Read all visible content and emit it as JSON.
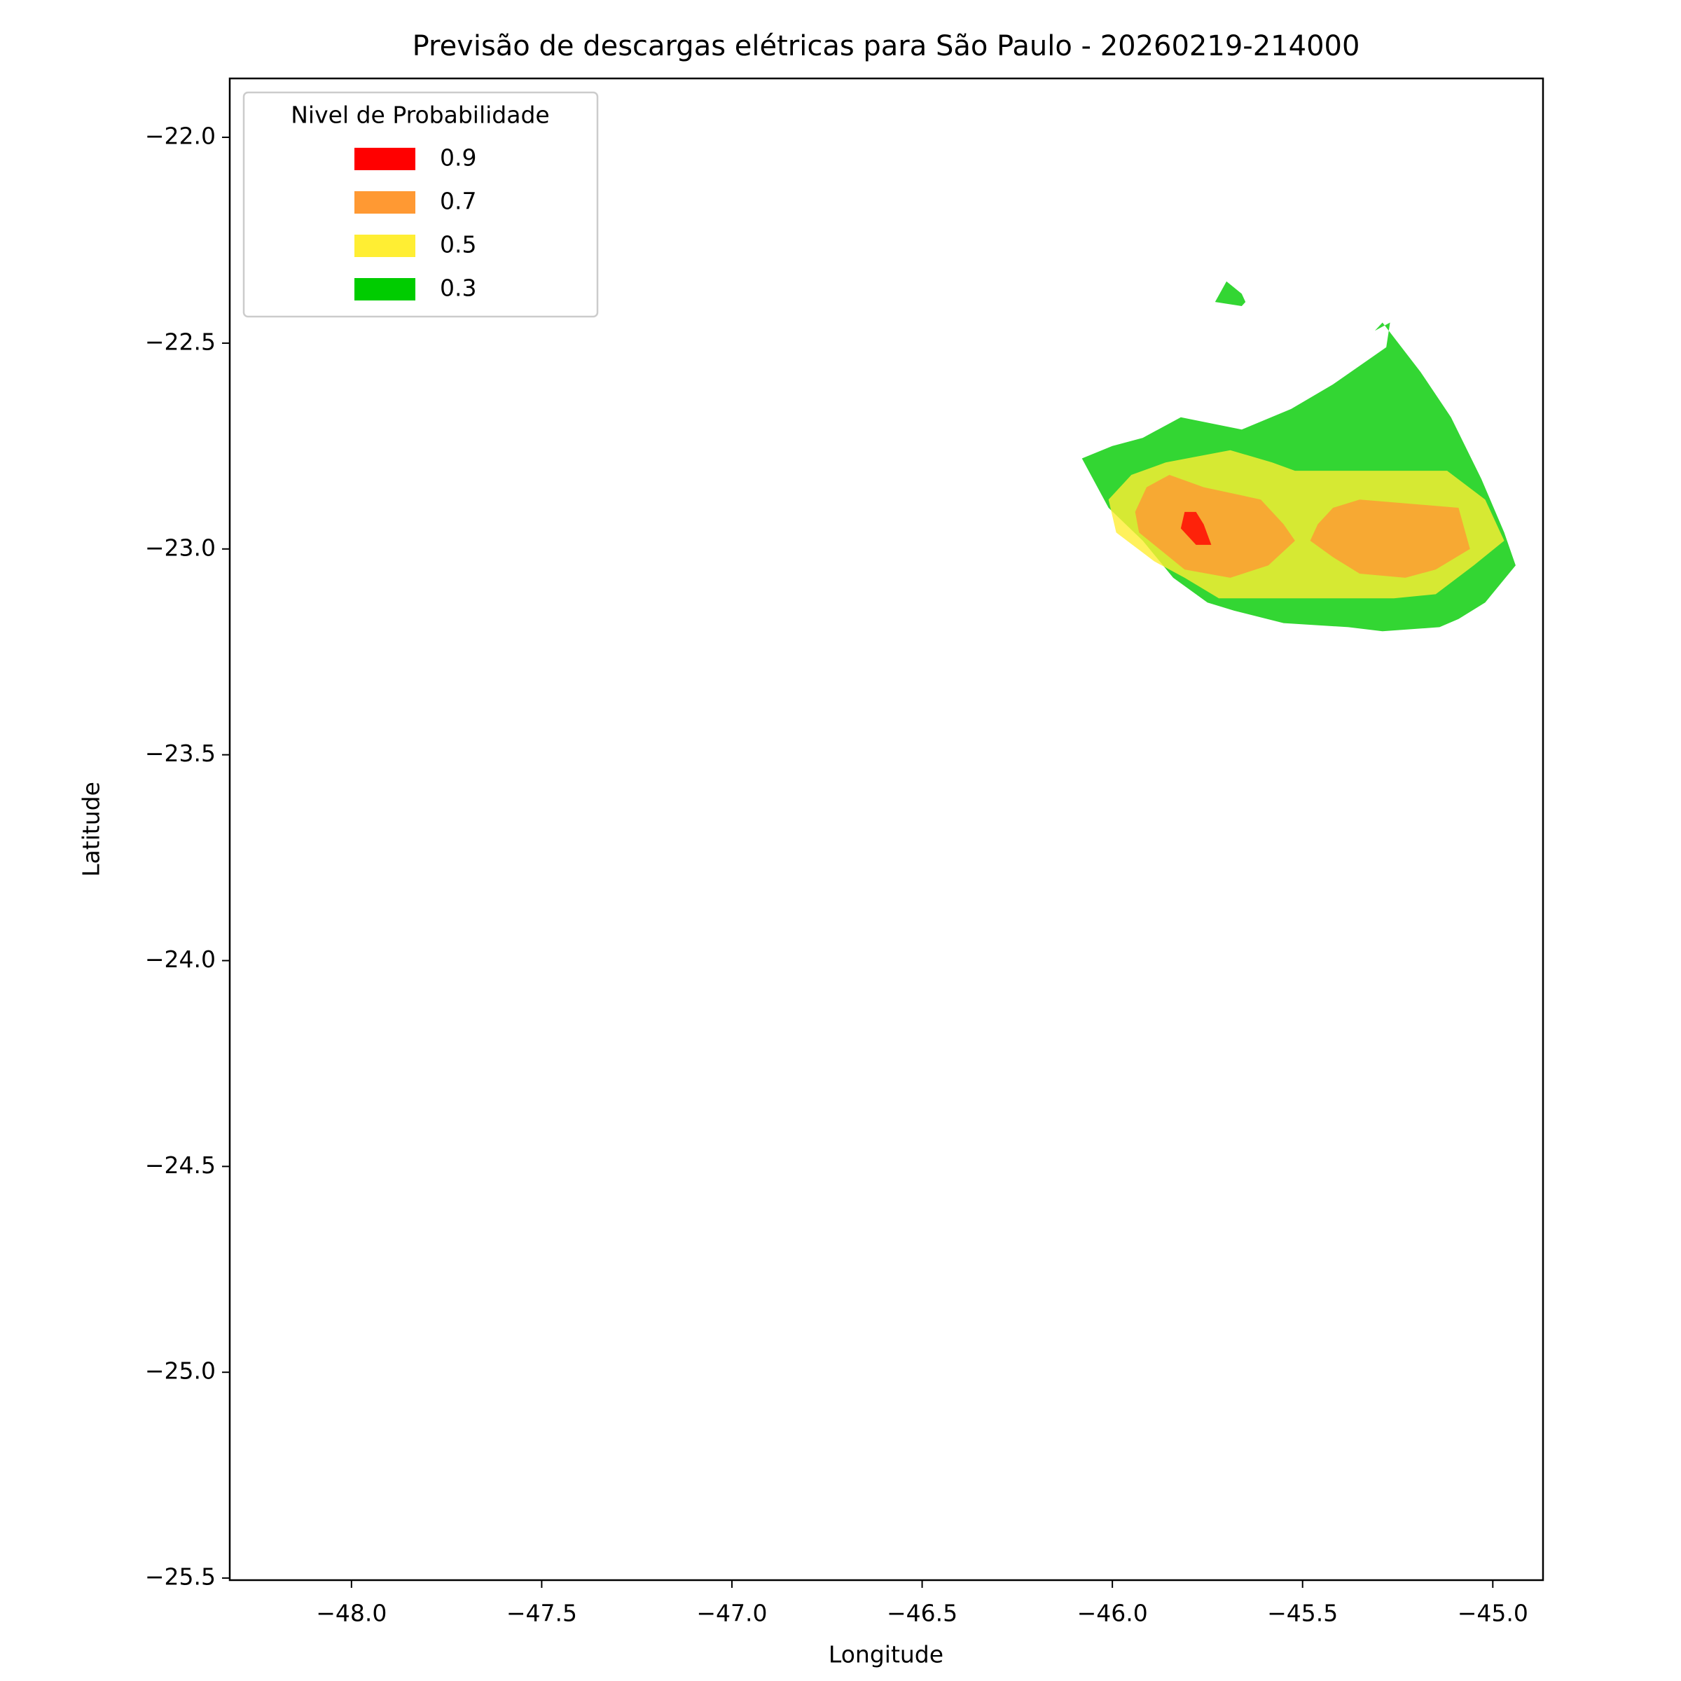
{
  "chart_data": {
    "type": "contour",
    "title": "Previsão de descargas elétricas para São Paulo - 20260219-214000",
    "x_label": "Longitude",
    "y_label": "Latitude",
    "xlim": [
      -48.32,
      -44.868
    ],
    "ylim": [
      -25.505,
      -21.857
    ],
    "xticks": [
      {
        "value": -48,
        "label": "−48.0"
      },
      {
        "value": -47.5,
        "label": "−47.5"
      },
      {
        "value": -47,
        "label": "−47.0"
      },
      {
        "value": -46.5,
        "label": "−46.5"
      },
      {
        "value": -46,
        "label": "−46.0"
      },
      {
        "value": -45.5,
        "label": "−45.5"
      },
      {
        "value": -45,
        "label": "−45.0"
      }
    ],
    "yticks": [
      {
        "value": -22,
        "label": "−22.0"
      },
      {
        "value": -22.5,
        "label": "−22.5"
      },
      {
        "value": -23,
        "label": "−23.0"
      },
      {
        "value": -23.5,
        "label": "−23.5"
      },
      {
        "value": -24,
        "label": "−24.0"
      },
      {
        "value": -24.5,
        "label": "−24.5"
      },
      {
        "value": -25,
        "label": "−25.0"
      },
      {
        "value": -25.5,
        "label": "−25.5"
      }
    ],
    "legend_title": "Nivel de Probabilidade",
    "legend_position": "upper left",
    "grid": false,
    "fill_opacity": 0.8,
    "series": [
      {
        "name": "0.9",
        "color": "#ff0000",
        "polygons": [
          {
            "x": [
              -45.81,
              -45.78,
              -45.76,
              -45.74,
              -45.78,
              -45.82
            ],
            "y": [
              -22.91,
              -22.91,
              -22.94,
              -22.99,
              -22.99,
              -22.95
            ]
          }
        ]
      },
      {
        "name": "0.7",
        "color": "#ff9933",
        "polygons": [
          {
            "x": [
              -45.94,
              -45.91,
              -45.85,
              -45.76,
              -45.61,
              -45.55,
              -45.52,
              -45.59,
              -45.69,
              -45.81,
              -45.89,
              -45.93
            ],
            "y": [
              -22.91,
              -22.85,
              -22.82,
              -22.85,
              -22.88,
              -22.94,
              -22.98,
              -23.04,
              -23.07,
              -23.05,
              -22.99,
              -22.96
            ]
          },
          {
            "x": [
              -45.46,
              -45.42,
              -45.35,
              -45.09,
              -45.06,
              -45.15,
              -45.23,
              -45.35,
              -45.42,
              -45.48
            ],
            "y": [
              -22.94,
              -22.9,
              -22.88,
              -22.9,
              -23.0,
              -23.05,
              -23.07,
              -23.06,
              -23.02,
              -22.98
            ]
          }
        ]
      },
      {
        "name": "0.5",
        "color": "#ffee33",
        "polygons": [
          {
            "x": [
              -46.01,
              -45.95,
              -45.86,
              -45.69,
              -45.58,
              -45.52,
              -45.12,
              -45.02,
              -44.97,
              -45.05,
              -45.15,
              -45.26,
              -45.55,
              -45.72,
              -45.81,
              -45.89,
              -45.99
            ],
            "y": [
              -22.88,
              -22.82,
              -22.79,
              -22.76,
              -22.79,
              -22.81,
              -22.81,
              -22.88,
              -22.98,
              -23.04,
              -23.11,
              -23.12,
              -23.12,
              -23.12,
              -23.07,
              -23.03,
              -22.96
            ]
          }
        ]
      },
      {
        "name": "0.3",
        "color": "#00cc00",
        "polygons": [
          {
            "x": [
              -45.29,
              -45.19,
              -45.11,
              -45.03,
              -44.97,
              -44.94,
              -45.02,
              -45.09,
              -45.14,
              -45.29,
              -45.38,
              -45.55,
              -45.68,
              -45.75,
              -45.84,
              -45.92,
              -46.01,
              -46.08,
              -46.0,
              -45.92,
              -45.82,
              -45.66,
              -45.53,
              -45.42,
              -45.28,
              -45.27,
              -45.31
            ],
            "y": [
              -22.45,
              -22.57,
              -22.68,
              -22.83,
              -22.96,
              -23.04,
              -23.13,
              -23.17,
              -23.19,
              -23.2,
              -23.19,
              -23.18,
              -23.15,
              -23.13,
              -23.07,
              -22.98,
              -22.9,
              -22.78,
              -22.75,
              -22.73,
              -22.68,
              -22.71,
              -22.66,
              -22.6,
              -22.51,
              -22.45,
              -22.47
            ]
          },
          {
            "x": [
              -45.73,
              -45.7,
              -45.66,
              -45.65,
              -45.66
            ],
            "y": [
              -22.4,
              -22.35,
              -22.38,
              -22.4,
              -22.41
            ]
          }
        ]
      }
    ]
  }
}
